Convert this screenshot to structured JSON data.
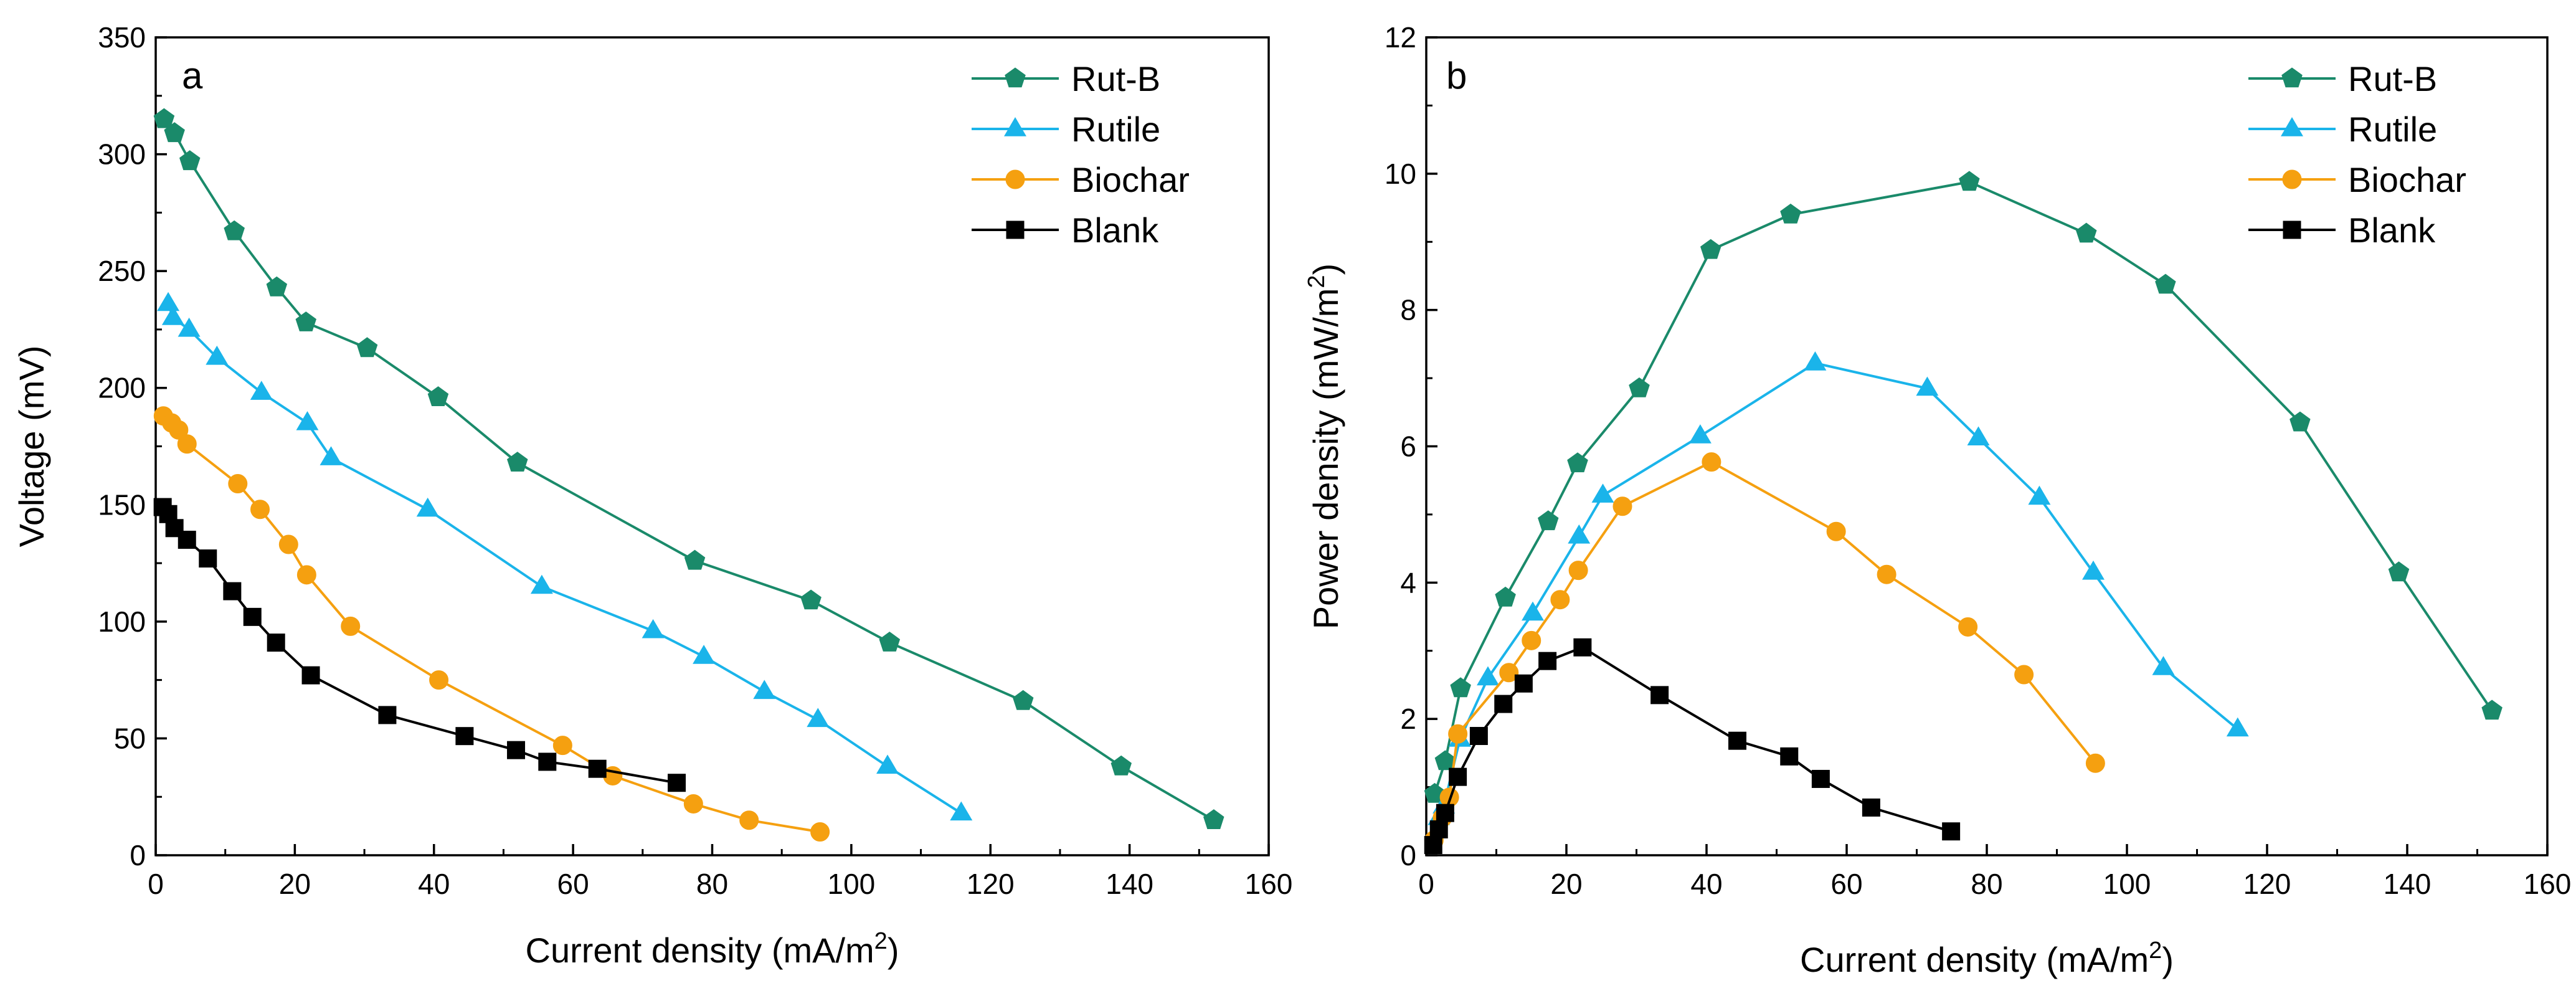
{
  "chart_data": [
    {
      "type": "line",
      "panel": "a",
      "xlabel": "Current density (mA/m",
      "xlabel_sup": "2",
      "xlabel_tail": ")",
      "ylabel": "Voltage (mV)",
      "xlim": [
        0,
        160
      ],
      "ylim": [
        0,
        350
      ],
      "xticks": [
        0,
        20,
        40,
        60,
        80,
        100,
        120,
        140,
        160
      ],
      "yticks": [
        0,
        50,
        100,
        150,
        200,
        250,
        300,
        350
      ],
      "legend_position": "top-right",
      "grid": false,
      "series": [
        {
          "name": "Rut-B",
          "color": "#1a8a6a",
          "marker": "pentagon",
          "points": [
            [
              1.2,
              315
            ],
            [
              2.7,
              309
            ],
            [
              4.9,
              297
            ],
            [
              11.3,
              267
            ],
            [
              17.4,
              243
            ],
            [
              21.6,
              228
            ],
            [
              30.4,
              217
            ],
            [
              40.6,
              196
            ],
            [
              52.0,
              168
            ],
            [
              77.5,
              126
            ],
            [
              94.2,
              109
            ],
            [
              105.5,
              91
            ],
            [
              124.7,
              66
            ],
            [
              138.8,
              38
            ],
            [
              152.1,
              15
            ]
          ]
        },
        {
          "name": "Rutile",
          "color": "#1ab4ea",
          "marker": "triangle",
          "points": [
            [
              1.8,
              236
            ],
            [
              2.5,
              230
            ],
            [
              4.8,
              225
            ],
            [
              8.8,
              213
            ],
            [
              15.2,
              198
            ],
            [
              21.8,
              185
            ],
            [
              25.2,
              170
            ],
            [
              39.1,
              148
            ],
            [
              55.5,
              115
            ],
            [
              71.5,
              96
            ],
            [
              78.8,
              85
            ],
            [
              87.5,
              70
            ],
            [
              95.2,
              58
            ],
            [
              105.2,
              38
            ],
            [
              115.8,
              18
            ]
          ]
        },
        {
          "name": "Biochar",
          "color": "#f5a010",
          "marker": "circle",
          "points": [
            [
              1.1,
              188
            ],
            [
              2.3,
              185
            ],
            [
              3.3,
              182
            ],
            [
              4.5,
              176
            ],
            [
              11.8,
              159
            ],
            [
              15.0,
              148
            ],
            [
              19.1,
              133
            ],
            [
              21.7,
              120
            ],
            [
              28.0,
              98
            ],
            [
              40.7,
              75
            ],
            [
              58.5,
              47
            ],
            [
              65.7,
              34
            ],
            [
              77.3,
              22
            ],
            [
              85.3,
              15
            ],
            [
              95.5,
              10
            ]
          ]
        },
        {
          "name": "Blank",
          "color": "#000000",
          "marker": "square",
          "points": [
            [
              1.0,
              149
            ],
            [
              1.8,
              146
            ],
            [
              2.7,
              140
            ],
            [
              4.5,
              135
            ],
            [
              7.5,
              127
            ],
            [
              11.0,
              113
            ],
            [
              13.9,
              102
            ],
            [
              17.3,
              91
            ],
            [
              22.3,
              77
            ],
            [
              33.3,
              60
            ],
            [
              44.4,
              51
            ],
            [
              51.8,
              45
            ],
            [
              56.3,
              40
            ],
            [
              63.5,
              37
            ],
            [
              74.9,
              31
            ]
          ]
        }
      ]
    },
    {
      "type": "line",
      "panel": "b",
      "xlabel": "Current density (mA/m",
      "xlabel_sup": "2",
      "xlabel_tail": ")",
      "ylabel": "Power density (mW/m",
      "ylabel_sup": "2",
      "ylabel_tail": ")",
      "xlim": [
        0,
        160
      ],
      "ylim": [
        0,
        12
      ],
      "xticks": [
        0,
        20,
        40,
        60,
        80,
        100,
        120,
        140,
        160
      ],
      "yticks": [
        0,
        2,
        4,
        6,
        8,
        10,
        12
      ],
      "legend_position": "top-right",
      "grid": false,
      "series": [
        {
          "name": "Rut-B",
          "color": "#1a8a6a",
          "marker": "pentagon",
          "points": [
            [
              1.2,
              0.9
            ],
            [
              2.7,
              1.38
            ],
            [
              4.9,
              2.45
            ],
            [
              11.3,
              3.78
            ],
            [
              17.4,
              4.9
            ],
            [
              21.6,
              5.75
            ],
            [
              30.4,
              6.85
            ],
            [
              40.6,
              8.88
            ],
            [
              52.0,
              9.4
            ],
            [
              77.5,
              9.88
            ],
            [
              94.2,
              9.12
            ],
            [
              105.5,
              8.37
            ],
            [
              124.7,
              6.35
            ],
            [
              138.8,
              4.15
            ],
            [
              152.1,
              2.12
            ]
          ]
        },
        {
          "name": "Rutile",
          "color": "#1ab4ea",
          "marker": "triangle",
          "points": [
            [
              1.8,
              0.55
            ],
            [
              2.5,
              0.72
            ],
            [
              4.8,
              1.7
            ],
            [
              8.8,
              2.6
            ],
            [
              15.2,
              3.55
            ],
            [
              21.8,
              4.68
            ],
            [
              25.2,
              5.28
            ],
            [
              39.1,
              6.15
            ],
            [
              55.5,
              7.22
            ],
            [
              71.5,
              6.85
            ],
            [
              78.8,
              6.12
            ],
            [
              87.5,
              5.25
            ],
            [
              95.2,
              4.15
            ],
            [
              105.2,
              2.75
            ],
            [
              115.8,
              1.85
            ]
          ]
        },
        {
          "name": "Biochar",
          "color": "#f5a010",
          "marker": "circle",
          "points": [
            [
              1.1,
              0.22
            ],
            [
              2.3,
              0.55
            ],
            [
              3.3,
              0.85
            ],
            [
              4.5,
              1.78
            ],
            [
              11.8,
              2.68
            ],
            [
              15.0,
              3.15
            ],
            [
              19.1,
              3.75
            ],
            [
              21.7,
              4.18
            ],
            [
              28.0,
              5.12
            ],
            [
              40.7,
              5.77
            ],
            [
              58.5,
              4.75
            ],
            [
              65.7,
              4.12
            ],
            [
              77.3,
              3.35
            ],
            [
              85.3,
              2.65
            ],
            [
              95.5,
              1.35
            ]
          ]
        },
        {
          "name": "Blank",
          "color": "#000000",
          "marker": "square",
          "points": [
            [
              1.0,
              0.15
            ],
            [
              1.8,
              0.38
            ],
            [
              2.7,
              0.62
            ],
            [
              4.5,
              1.15
            ],
            [
              7.5,
              1.75
            ],
            [
              11.0,
              2.22
            ],
            [
              13.9,
              2.52
            ],
            [
              17.3,
              2.85
            ],
            [
              22.3,
              3.05
            ],
            [
              33.3,
              2.35
            ],
            [
              44.4,
              1.68
            ],
            [
              51.8,
              1.45
            ],
            [
              56.3,
              1.12
            ],
            [
              63.5,
              0.7
            ],
            [
              74.9,
              0.35
            ]
          ]
        }
      ]
    }
  ]
}
